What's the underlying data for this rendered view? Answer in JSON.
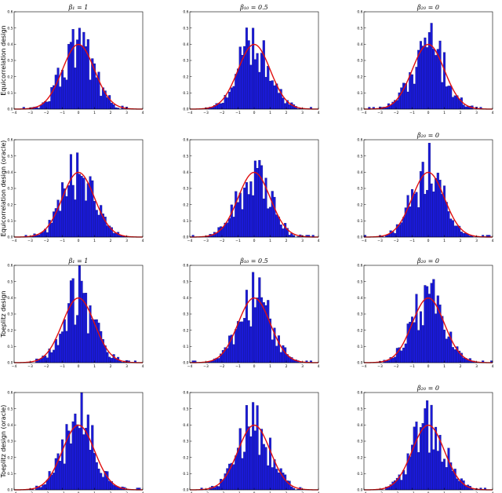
{
  "figure": {
    "row_labels": [
      "Equicorrelation design",
      "Equicorrelation design (oracle)",
      "Toeplitz design",
      "Toeplitz design (oracle)"
    ],
    "col_titles": [
      [
        "β₁ = 1",
        "β₁₀ = 0.5",
        "β₂₀ = 0"
      ],
      [
        "",
        "",
        "β₂₀ = 0"
      ],
      [
        "β₁ = 1",
        "β₁₀ = 0.5",
        "β₂₀ = 0"
      ],
      [
        "",
        "",
        "β₂₀ = 0"
      ]
    ],
    "colors": {
      "bar": "#1a1ad8",
      "bar_edge": "#0b0b6e",
      "curve": "#e01010",
      "axis": "#000000"
    }
  },
  "chart_data": {
    "type": "bar",
    "layout": "grid 4 rows x 3 columns of histograms with standard normal density overlay",
    "xlim": [
      -4,
      4
    ],
    "ylim": [
      0,
      0.6
    ],
    "xticks": [
      -4,
      -3,
      -2,
      -1,
      0,
      1,
      2,
      3,
      4
    ],
    "yticks": [
      0.0,
      0.1,
      0.2,
      0.3,
      0.4,
      0.5,
      0.6
    ],
    "overlay_curve": "standard normal density, peak 0.40 at x=0",
    "bins": 60,
    "panel_peaks": [
      [
        0.5,
        0.5,
        0.53
      ],
      [
        0.52,
        0.47,
        0.58
      ],
      [
        0.6,
        0.4,
        0.47
      ],
      [
        0.6,
        0.52,
        0.55
      ]
    ]
  }
}
